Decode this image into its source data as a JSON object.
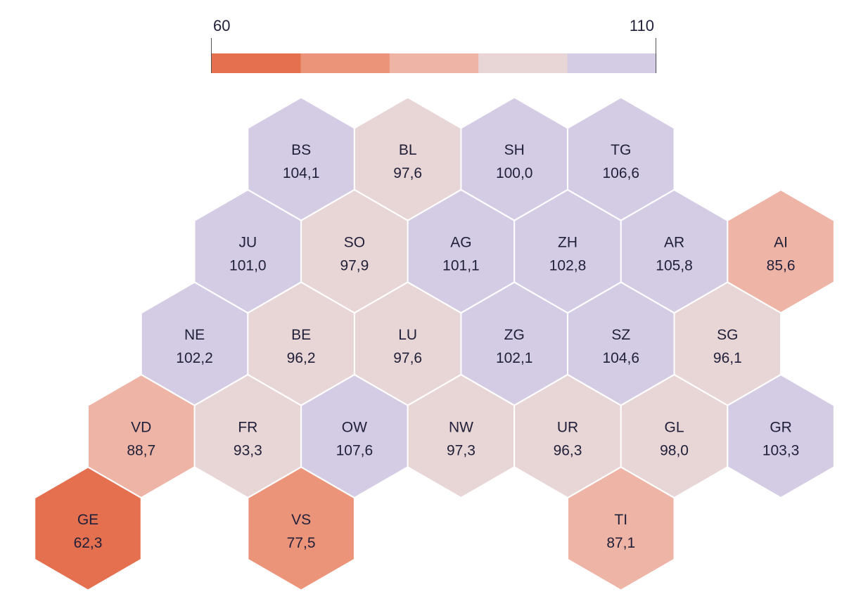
{
  "legend": {
    "min_label": "60",
    "max_label": "110",
    "bins": [
      {
        "from": 60,
        "to": 70,
        "color": "#E4704F"
      },
      {
        "from": 70,
        "to": 80,
        "color": "#EB9479"
      },
      {
        "from": 80,
        "to": 90,
        "color": "#EEB4A6"
      },
      {
        "from": 90,
        "to": 100,
        "color": "#E8D5D5"
      },
      {
        "from": 100,
        "to": 110,
        "color": "#D4CCE4"
      }
    ]
  },
  "cantons": [
    {
      "code": "BS",
      "value": "104,1",
      "row": 0,
      "col": 3
    },
    {
      "code": "BL",
      "value": "97,6",
      "row": 0,
      "col": 5
    },
    {
      "code": "SH",
      "value": "100,0",
      "row": 0,
      "col": 7
    },
    {
      "code": "TG",
      "value": "106,6",
      "row": 0,
      "col": 9
    },
    {
      "code": "JU",
      "value": "101,0",
      "row": 1,
      "col": 2
    },
    {
      "code": "SO",
      "value": "97,9",
      "row": 1,
      "col": 4
    },
    {
      "code": "AG",
      "value": "101,1",
      "row": 1,
      "col": 6
    },
    {
      "code": "ZH",
      "value": "102,8",
      "row": 1,
      "col": 8
    },
    {
      "code": "AR",
      "value": "105,8",
      "row": 1,
      "col": 10
    },
    {
      "code": "AI",
      "value": "85,6",
      "row": 1,
      "col": 12
    },
    {
      "code": "NE",
      "value": "102,2",
      "row": 2,
      "col": 1
    },
    {
      "code": "BE",
      "value": "96,2",
      "row": 2,
      "col": 3
    },
    {
      "code": "LU",
      "value": "97,6",
      "row": 2,
      "col": 5
    },
    {
      "code": "ZG",
      "value": "102,1",
      "row": 2,
      "col": 7
    },
    {
      "code": "SZ",
      "value": "104,6",
      "row": 2,
      "col": 9
    },
    {
      "code": "SG",
      "value": "96,1",
      "row": 2,
      "col": 11
    },
    {
      "code": "VD",
      "value": "88,7",
      "row": 3,
      "col": 0
    },
    {
      "code": "FR",
      "value": "93,3",
      "row": 3,
      "col": 2
    },
    {
      "code": "OW",
      "value": "107,6",
      "row": 3,
      "col": 4
    },
    {
      "code": "NW",
      "value": "97,3",
      "row": 3,
      "col": 6
    },
    {
      "code": "UR",
      "value": "96,3",
      "row": 3,
      "col": 8
    },
    {
      "code": "GL",
      "value": "98,0",
      "row": 3,
      "col": 10
    },
    {
      "code": "GR",
      "value": "103,3",
      "row": 3,
      "col": 12
    },
    {
      "code": "GE",
      "value": "62,3",
      "row": 4,
      "col": -1
    },
    {
      "code": "VS",
      "value": "77,5",
      "row": 4,
      "col": 3
    },
    {
      "code": "TI",
      "value": "87,1",
      "row": 4,
      "col": 9
    }
  ]
}
